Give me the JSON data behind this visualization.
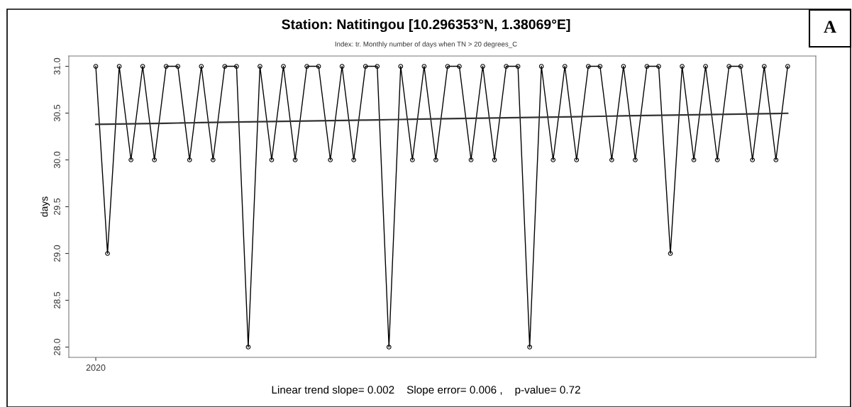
{
  "chart_data": {
    "type": "line",
    "title": "Station: Natitingou [10.296353°N, 1.38069°E]",
    "subtitle": "Index: tr. Monthly number of days when TN > 20 degrees_C",
    "ylabel": "days",
    "categories": [
      "2020",
      null,
      null,
      null,
      null,
      null,
      null,
      null,
      null,
      null,
      null,
      null,
      null,
      null,
      null,
      null,
      null,
      null,
      null,
      null,
      null,
      null,
      null,
      null,
      null,
      null,
      null,
      null,
      null,
      null,
      null,
      null,
      null,
      null,
      null,
      null,
      null,
      null,
      null,
      null,
      null,
      null,
      null,
      null,
      null,
      null,
      null,
      null,
      null,
      null,
      null,
      null,
      null,
      null,
      null,
      null,
      null,
      null,
      null,
      null
    ],
    "series": [
      {
        "color": "#000000",
        "marker": "circle",
        "values": [
          31,
          29,
          31,
          30,
          31,
          30,
          31,
          31,
          30,
          31,
          30,
          31,
          31,
          28,
          31,
          30,
          31,
          30,
          31,
          31,
          30,
          31,
          30,
          31,
          31,
          28,
          31,
          30,
          31,
          30,
          31,
          31,
          30,
          31,
          30,
          31,
          31,
          28,
          31,
          30,
          31,
          30,
          31,
          31,
          30,
          31,
          30,
          31,
          31,
          29,
          31,
          30,
          31,
          30,
          31,
          31,
          30,
          31,
          30,
          31
        ]
      },
      {
        "color": "#333333",
        "marker": "none",
        "values": [
          30.38,
          30.382,
          30.384,
          30.386,
          30.388,
          30.39,
          30.392,
          30.394,
          30.396,
          30.398,
          30.4,
          30.402,
          30.404,
          30.406,
          30.408,
          30.41,
          30.412,
          30.414,
          30.416,
          30.418,
          30.42,
          30.422,
          30.424,
          30.426,
          30.428,
          30.43,
          30.432,
          30.434,
          30.436,
          30.438,
          30.44,
          30.442,
          30.444,
          30.446,
          30.448,
          30.45,
          30.452,
          30.454,
          30.456,
          30.458,
          30.46,
          30.462,
          30.464,
          30.466,
          30.468,
          30.47,
          30.472,
          30.474,
          30.476,
          30.478,
          30.48,
          30.482,
          30.484,
          30.486,
          30.488,
          30.49,
          30.492,
          30.494,
          30.496,
          30.498
        ]
      }
    ],
    "ylim": [
      27.89,
      31.11
    ],
    "yticks": [
      {
        "value": 28,
        "label": "28.0"
      },
      {
        "value": 28.5,
        "label": "28.5"
      },
      {
        "value": 29,
        "label": "29.0"
      },
      {
        "value": 29.5,
        "label": "29.5"
      },
      {
        "value": 30,
        "label": "30.0"
      },
      {
        "value": 30.5,
        "label": "30.5"
      },
      {
        "value": 31,
        "label": "31.0"
      }
    ],
    "grid": false,
    "annotations": [
      "Linear trend slope= 0.002    Slope error= 0.006 ,    p-value= 0.72",
      "A"
    ]
  }
}
